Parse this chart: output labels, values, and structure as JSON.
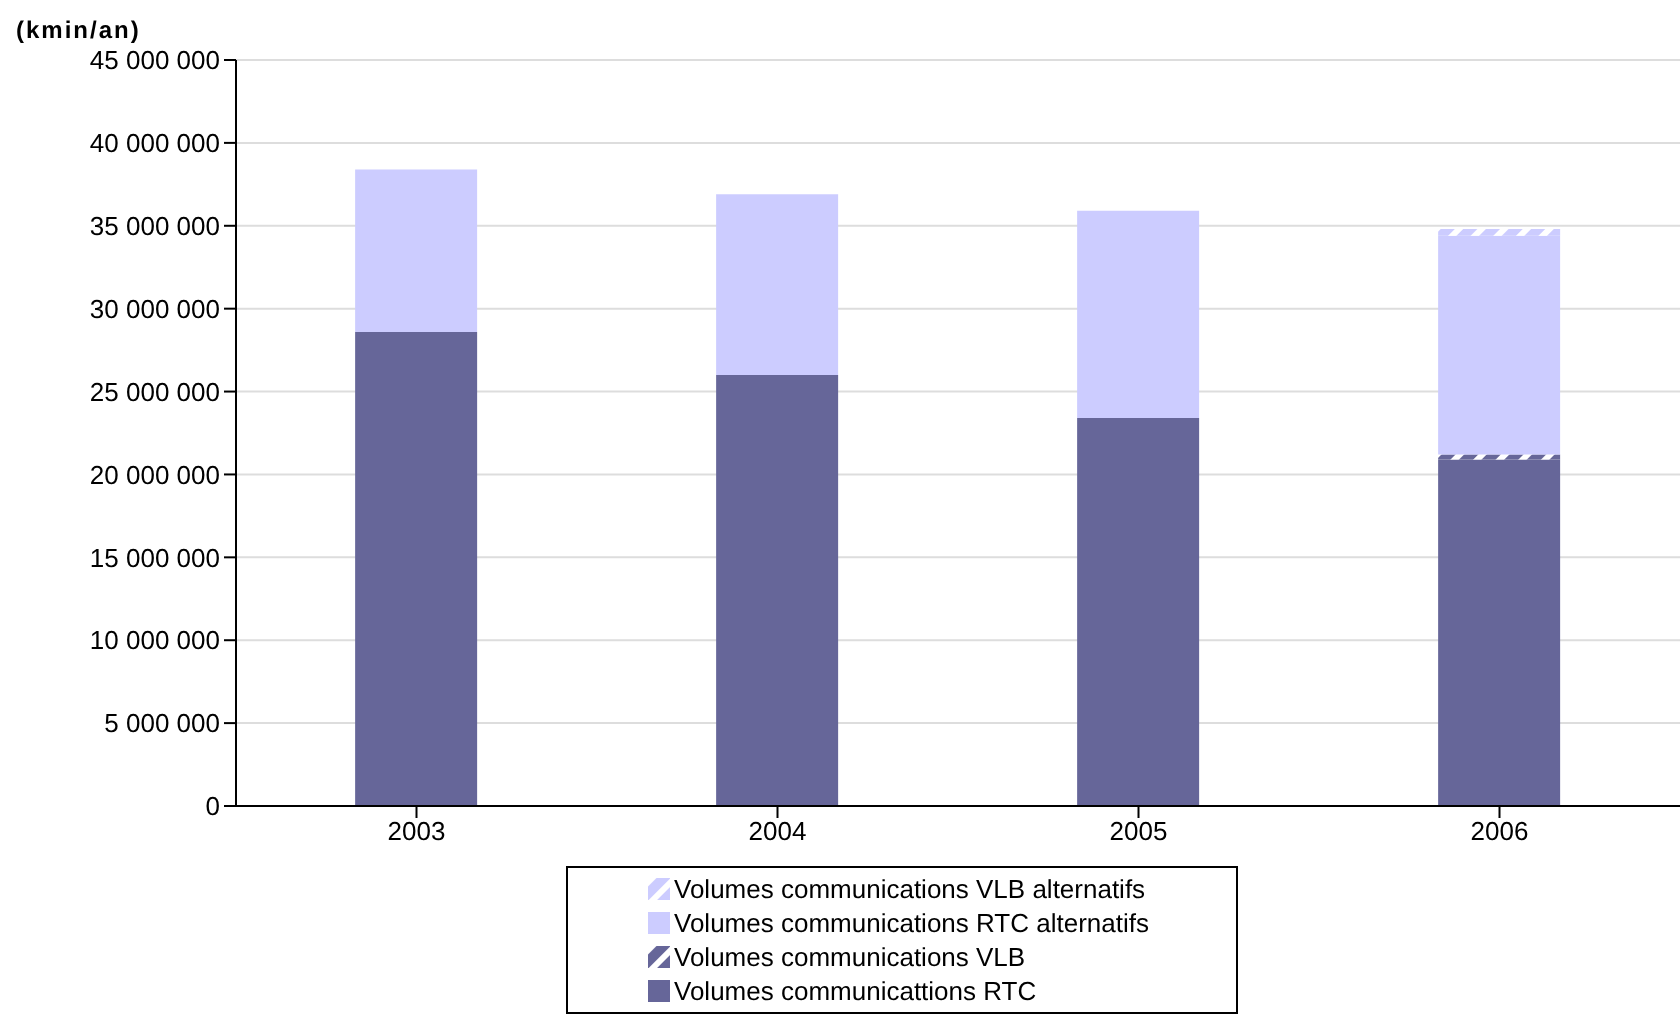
{
  "chart_data": {
    "type": "bar",
    "stacked": true,
    "ylabel": "(kmin/an)",
    "categories": [
      "2003",
      "2004",
      "2005",
      "2006"
    ],
    "series": [
      {
        "name": "Volumes communicattions RTC",
        "color": "#666699",
        "values": [
          28600000.0,
          26000000.0,
          23400000.0,
          20900000.0
        ]
      },
      {
        "name": "Volumes communications VLB",
        "color": "#666699",
        "values": [
          0,
          0,
          0,
          300000.0
        ]
      },
      {
        "name": "Volumes communications RTC alternatifs",
        "color": "#ccccff",
        "values": [
          9800000.0,
          10900000.0,
          12500000.0,
          13200000.0
        ]
      },
      {
        "name": "Volumes communications VLB alternatifs",
        "color": "#ccccff",
        "values": [
          0,
          0,
          0,
          400000.0
        ]
      }
    ],
    "ylim": [
      0,
      45000000
    ],
    "yticks": [
      {
        "value": 0,
        "label": "0"
      },
      {
        "value": 5000000,
        "label": "5 000 000"
      },
      {
        "value": 10000000,
        "label": "10 000 000"
      },
      {
        "value": 15000000,
        "label": "15 000 000"
      },
      {
        "value": 20000000,
        "label": "20 000 000"
      },
      {
        "value": 25000000,
        "label": "25 000 000"
      },
      {
        "value": 30000000,
        "label": "30 000 000"
      },
      {
        "value": 35000000,
        "label": "35 000 000"
      },
      {
        "value": 40000000,
        "label": "40 000 000"
      },
      {
        "value": 45000000,
        "label": "45 000 000"
      }
    ],
    "grid": "y",
    "legend": "bottom"
  }
}
